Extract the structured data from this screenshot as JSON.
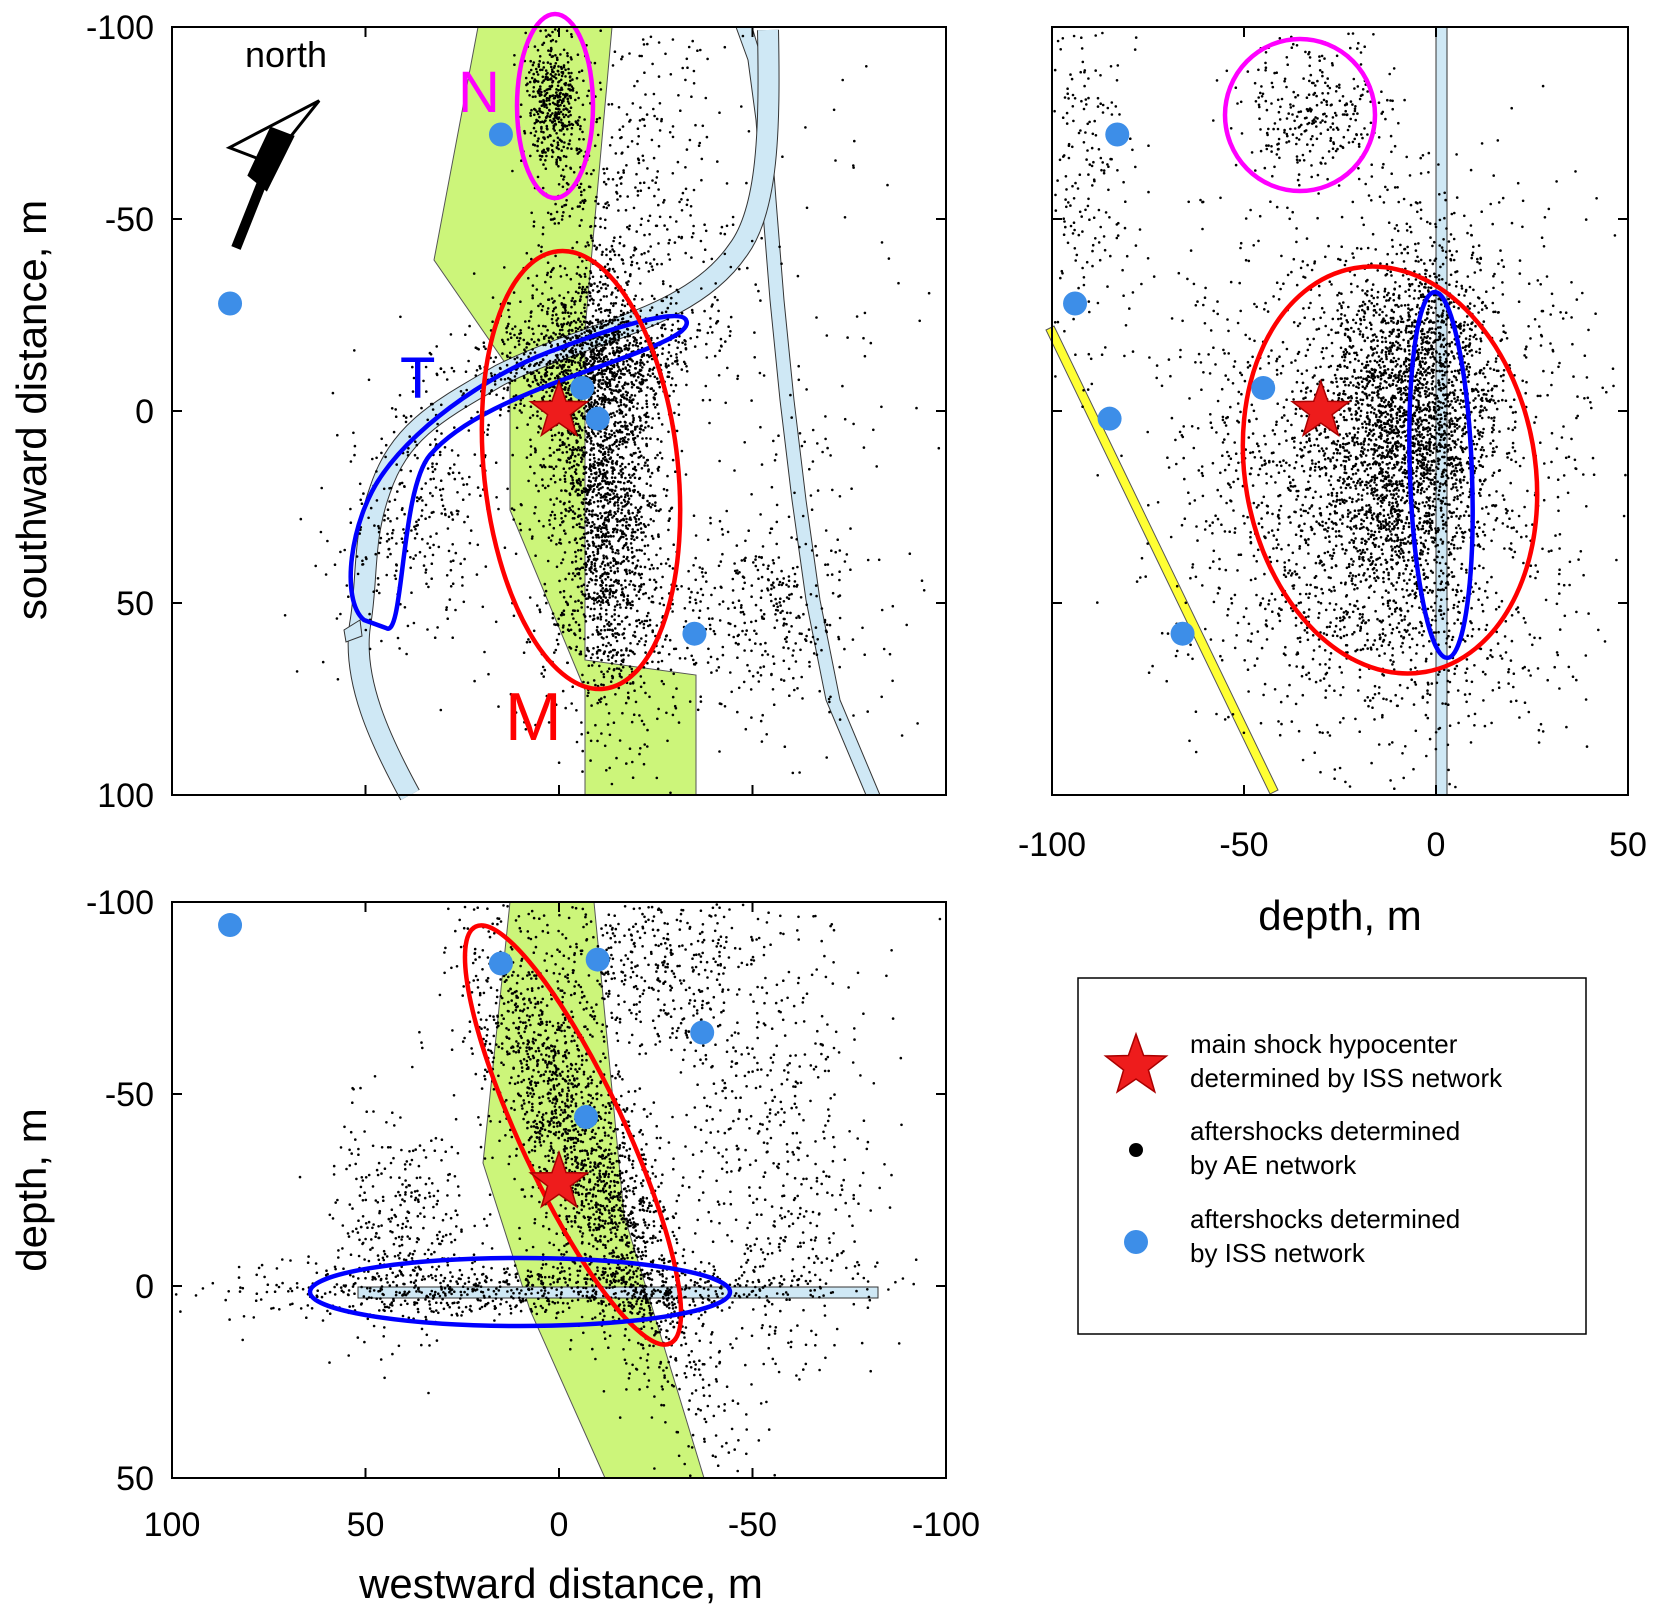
{
  "chart_data": [
    {
      "type": "scatter",
      "panel": "plan view",
      "xlabel": "",
      "ylabel": "southward distance, m",
      "xlim": [
        100,
        -100
      ],
      "ylim": [
        -100,
        100
      ],
      "yticks": [
        "-100",
        "-50",
        "0",
        "50",
        "100"
      ],
      "annotations": [
        "north",
        "N",
        "T",
        "M"
      ],
      "mainshock": {
        "x": 0,
        "y": 0
      },
      "iss_aftershocks": [
        [
          15,
          -72
        ],
        [
          85,
          -28
        ],
        [
          -6,
          -6
        ],
        [
          -10,
          2
        ],
        [
          -35,
          58
        ]
      ],
      "clusters": [
        {
          "label": "N",
          "color": "#ff00ff",
          "cx": 2,
          "cy": -72,
          "rx": 10,
          "ry": 20
        },
        {
          "label": "T",
          "color": "#0000ff"
        },
        {
          "label": "M",
          "color": "#ff0000",
          "cx": -5,
          "cy": 13,
          "rx": 25,
          "ry": 57
        }
      ]
    },
    {
      "type": "scatter",
      "panel": "depth section (north-south)",
      "xlabel": "depth, m",
      "ylabel": "",
      "xlim": [
        -100,
        50
      ],
      "ylim": [
        -100,
        100
      ],
      "xticks": [
        "-100",
        "-50",
        "0",
        "50"
      ],
      "mainshock": {
        "x": -30,
        "y": 0
      },
      "iss_aftershocks": [
        [
          -83,
          -72
        ],
        [
          -94,
          -28
        ],
        [
          -45,
          -6
        ],
        [
          -85,
          2
        ],
        [
          -66,
          58
        ]
      ]
    },
    {
      "type": "scatter",
      "panel": "depth section (east-west)",
      "xlabel": "westward distance, m",
      "ylabel": "depth, m",
      "xlim": [
        100,
        -100
      ],
      "ylim": [
        -100,
        50
      ],
      "xticks": [
        "100",
        "50",
        "0",
        "-50",
        "-100"
      ],
      "yticks": [
        "-100",
        "-50",
        "0",
        "50"
      ],
      "mainshock": {
        "x": 0,
        "y": -27
      },
      "iss_aftershocks": [
        [
          85,
          -94
        ],
        [
          15,
          -84
        ],
        [
          -10,
          -85
        ],
        [
          -37,
          -66
        ],
        [
          -7,
          -44
        ]
      ]
    }
  ],
  "legend": {
    "items": [
      {
        "lines": [
          "main shock hypocenter",
          "determined by ISS network"
        ],
        "symbol": "red-star"
      },
      {
        "lines": [
          "aftershocks determined",
          "by AE network"
        ],
        "symbol": "black-dot"
      },
      {
        "lines": [
          "aftershocks determined",
          "by ISS network"
        ],
        "symbol": "blue-dot"
      }
    ]
  },
  "colors": {
    "dyke": "#ccf57a",
    "tunnel": "#cfe8f5",
    "iss": "#3d8ee8",
    "star": "#ee1c1c",
    "cluster_N": "#ff00ff",
    "cluster_T": "#0000ff",
    "cluster_M": "#ff0000",
    "plane": "#ffff33"
  }
}
